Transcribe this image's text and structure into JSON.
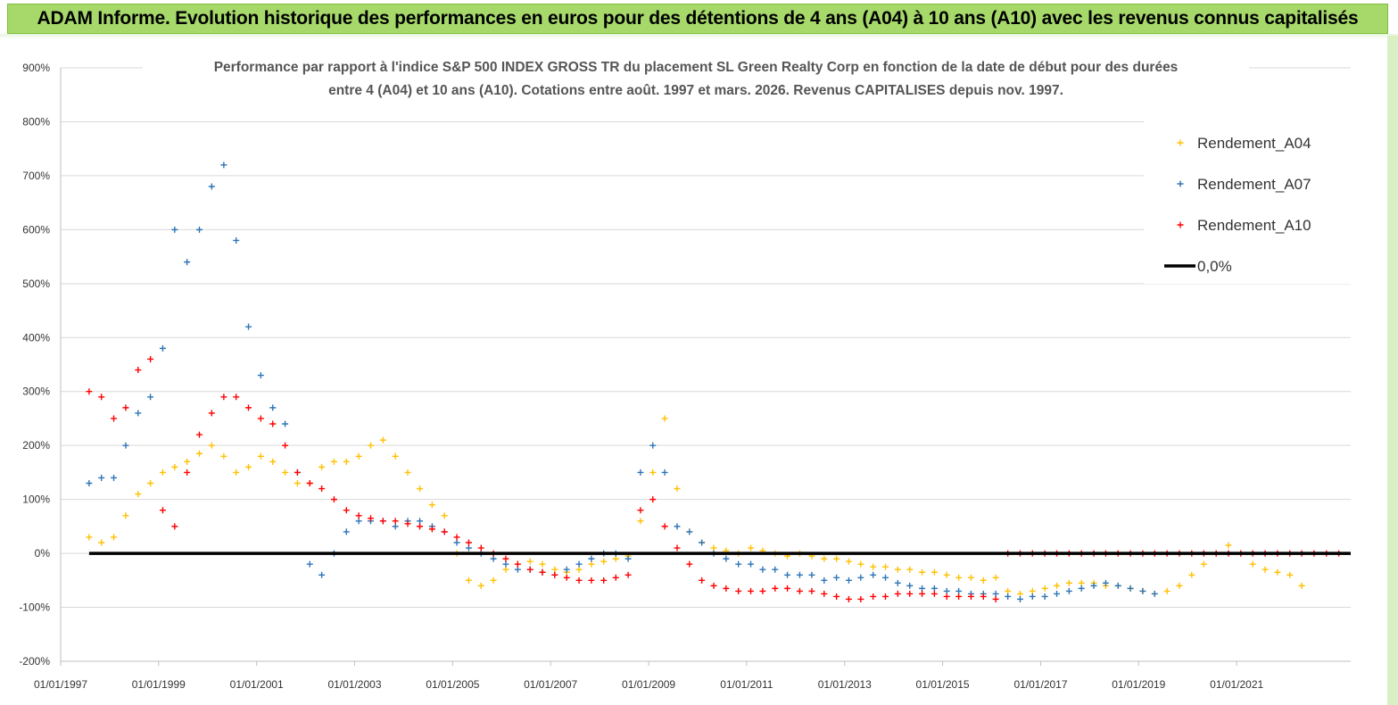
{
  "banner": {
    "text": "ADAM Informe. Evolution historique des performances en euros pour des détentions de 4 ans (A04) à 10 ans (A10) avec les revenus connus capitalisés"
  },
  "colors": {
    "banner_bg": "#a6d96a",
    "A04": "#ffc000",
    "A07": "#2e75b6",
    "A10": "#ff0000",
    "zero_line": "#000000",
    "grid": "#d9d9d9"
  },
  "chart_data": {
    "type": "scatter",
    "title": "Performance par rapport à l'indice S&P 500 INDEX GROSS TR  du placement SL Green Realty Corp en fonction de la date de début pour des durées entre 4 (A04) et 10 ans (A10). Cotations entre août. 1997 et mars. 2026. Revenus CAPITALISES depuis nov. 1997.",
    "title_lines": [
      "Performance par rapport à l'indice S&P 500 INDEX GROSS TR  du placement SL Green Realty Corp en fonction de la date de début pour des durées",
      "entre 4 (A04) et 10 ans (A10). Cotations entre août. 1997 et mars. 2026. Revenus CAPITALISES depuis nov. 1997."
    ],
    "xlabel": "",
    "ylabel": "",
    "x_type": "date",
    "xlim": [
      "1997-01-01",
      "2023-05-01"
    ],
    "ylim": [
      -200,
      900
    ],
    "y_unit": "%",
    "grid": "horizontal",
    "legend_position": "top-right",
    "x_tick_labels": [
      "01/01/1997",
      "01/01/1999",
      "01/01/2001",
      "01/01/2003",
      "01/01/2005",
      "01/01/2007",
      "01/01/2009",
      "01/01/2011",
      "01/01/2013",
      "01/01/2015",
      "01/01/2017",
      "01/01/2019",
      "01/01/2021"
    ],
    "x_tick_dates": [
      "1997-01-01",
      "1999-01-01",
      "2001-01-01",
      "2003-01-01",
      "2005-01-01",
      "2007-01-01",
      "2009-01-01",
      "2011-01-01",
      "2013-01-01",
      "2015-01-01",
      "2017-01-01",
      "2019-01-01",
      "2021-01-01"
    ],
    "y_tick_labels": [
      "900%",
      "800%",
      "700%",
      "600%",
      "500%",
      "400%",
      "300%",
      "200%",
      "100%",
      "0%",
      "-100%",
      "-200%"
    ],
    "y_ticks": [
      900,
      800,
      700,
      600,
      500,
      400,
      300,
      200,
      100,
      0,
      -100,
      -200
    ],
    "series": [
      {
        "name": "Rendement_A04",
        "marker": "+",
        "x": [
          "1997-08-01",
          "1997-11-01",
          "1998-02-01",
          "1998-05-01",
          "1998-08-01",
          "1998-11-01",
          "1999-02-01",
          "1999-05-01",
          "1999-08-01",
          "1999-11-01",
          "2000-02-01",
          "2000-05-01",
          "2000-08-01",
          "2000-11-01",
          "2001-02-01",
          "2001-05-01",
          "2001-08-01",
          "2001-11-01",
          "2002-02-01",
          "2002-05-01",
          "2002-08-01",
          "2002-11-01",
          "2003-02-01",
          "2003-05-01",
          "2003-08-01",
          "2003-11-01",
          "2004-02-01",
          "2004-05-01",
          "2004-08-01",
          "2004-11-01",
          "2005-02-01",
          "2005-05-01",
          "2005-08-01",
          "2005-11-01",
          "2006-02-01",
          "2006-05-01",
          "2006-08-01",
          "2006-11-01",
          "2007-02-01",
          "2007-05-01",
          "2007-08-01",
          "2007-11-01",
          "2008-02-01",
          "2008-05-01",
          "2008-08-01",
          "2008-11-01",
          "2009-02-01",
          "2009-05-01",
          "2009-08-01",
          "2009-11-01",
          "2010-02-01",
          "2010-05-01",
          "2010-08-01",
          "2010-11-01",
          "2011-02-01",
          "2011-05-01",
          "2011-08-01",
          "2011-11-01",
          "2012-02-01",
          "2012-05-01",
          "2012-08-01",
          "2012-11-01",
          "2013-02-01",
          "2013-05-01",
          "2013-08-01",
          "2013-11-01",
          "2014-02-01",
          "2014-05-01",
          "2014-08-01",
          "2014-11-01",
          "2015-02-01",
          "2015-05-01",
          "2015-08-01",
          "2015-11-01",
          "2016-02-01",
          "2016-05-01",
          "2016-08-01",
          "2016-11-01",
          "2017-02-01",
          "2017-05-01",
          "2017-08-01",
          "2017-11-01",
          "2018-02-01",
          "2018-05-01",
          "2018-08-01",
          "2018-11-01",
          "2019-02-01",
          "2019-05-01",
          "2019-08-01",
          "2019-11-01",
          "2020-02-01",
          "2020-05-01",
          "2020-08-01",
          "2020-11-01",
          "2021-02-01",
          "2021-05-01",
          "2021-08-01",
          "2021-11-01",
          "2022-02-01",
          "2022-05-01"
        ],
        "y": [
          30,
          20,
          30,
          70,
          110,
          130,
          150,
          160,
          170,
          185,
          200,
          180,
          150,
          160,
          180,
          170,
          150,
          130,
          130,
          160,
          170,
          170,
          180,
          200,
          210,
          180,
          150,
          120,
          90,
          70,
          0,
          -50,
          -60,
          -50,
          -30,
          -20,
          -15,
          -20,
          -30,
          -35,
          -30,
          -20,
          -15,
          -10,
          -5,
          60,
          150,
          250,
          120,
          40,
          20,
          10,
          5,
          0,
          10,
          5,
          0,
          -5,
          0,
          -5,
          -10,
          -10,
          -15,
          -20,
          -25,
          -25,
          -30,
          -30,
          -35,
          -35,
          -40,
          -45,
          -45,
          -50,
          -45,
          -70,
          -75,
          -70,
          -65,
          -60,
          -55,
          -55,
          -55,
          -60,
          -60,
          -65,
          -70,
          -75,
          -70,
          -60,
          -40,
          -20,
          0,
          15,
          0,
          -20,
          -30,
          -35,
          -40,
          -60
        ]
      },
      {
        "name": "Rendement_A07",
        "marker": "+",
        "x": [
          "1997-08-01",
          "1997-11-01",
          "1998-02-01",
          "1998-05-01",
          "1998-08-01",
          "1998-11-01",
          "1999-02-01",
          "1999-05-01",
          "1999-08-01",
          "1999-11-01",
          "2000-02-01",
          "2000-05-01",
          "2000-08-01",
          "2000-11-01",
          "2001-02-01",
          "2001-05-01",
          "2001-08-01",
          "2001-11-01",
          "2002-02-01",
          "2002-05-01",
          "2002-08-01",
          "2002-11-01",
          "2003-02-01",
          "2003-05-01",
          "2003-08-01",
          "2003-11-01",
          "2004-02-01",
          "2004-05-01",
          "2004-08-01",
          "2004-11-01",
          "2005-02-01",
          "2005-05-01",
          "2005-08-01",
          "2005-11-01",
          "2006-02-01",
          "2006-05-01",
          "2006-08-01",
          "2006-11-01",
          "2007-02-01",
          "2007-05-01",
          "2007-08-01",
          "2007-11-01",
          "2008-02-01",
          "2008-05-01",
          "2008-08-01",
          "2008-11-01",
          "2009-02-01",
          "2009-05-01",
          "2009-08-01",
          "2009-11-01",
          "2010-02-01",
          "2010-05-01",
          "2010-08-01",
          "2010-11-01",
          "2011-02-01",
          "2011-05-01",
          "2011-08-01",
          "2011-11-01",
          "2012-02-01",
          "2012-05-01",
          "2012-08-01",
          "2012-11-01",
          "2013-02-01",
          "2013-05-01",
          "2013-08-01",
          "2013-11-01",
          "2014-02-01",
          "2014-05-01",
          "2014-08-01",
          "2014-11-01",
          "2015-02-01",
          "2015-05-01",
          "2015-08-01",
          "2015-11-01",
          "2016-02-01",
          "2016-05-01",
          "2016-08-01",
          "2016-11-01",
          "2017-02-01",
          "2017-05-01",
          "2017-08-01",
          "2017-11-01",
          "2018-02-01",
          "2018-05-01",
          "2018-08-01",
          "2018-11-01",
          "2019-02-01",
          "2019-05-01"
        ],
        "y": [
          130,
          140,
          140,
          200,
          260,
          290,
          380,
          600,
          540,
          600,
          680,
          720,
          580,
          420,
          330,
          270,
          240,
          150,
          -20,
          -40,
          0,
          40,
          60,
          60,
          60,
          50,
          60,
          60,
          50,
          40,
          20,
          10,
          0,
          -10,
          -20,
          -30,
          -30,
          -35,
          -40,
          -30,
          -20,
          -10,
          0,
          0,
          -10,
          150,
          200,
          150,
          50,
          40,
          20,
          0,
          -10,
          -20,
          -20,
          -30,
          -30,
          -40,
          -40,
          -40,
          -50,
          -45,
          -50,
          -45,
          -40,
          -45,
          -55,
          -60,
          -65,
          -65,
          -70,
          -70,
          -75,
          -75,
          -75,
          -80,
          -85,
          -80,
          -80,
          -75,
          -70,
          -65,
          -60,
          -55,
          -60,
          -65,
          -70,
          -75
        ]
      },
      {
        "name": "Rendement_A10",
        "marker": "+",
        "x": [
          "1997-08-01",
          "1997-11-01",
          "1998-02-01",
          "1998-05-01",
          "1998-08-01",
          "1998-11-01",
          "1999-02-01",
          "1999-05-01",
          "1999-08-01",
          "1999-11-01",
          "2000-02-01",
          "2000-05-01",
          "2000-08-01",
          "2000-11-01",
          "2001-02-01",
          "2001-05-01",
          "2001-08-01",
          "2001-11-01",
          "2002-02-01",
          "2002-05-01",
          "2002-08-01",
          "2002-11-01",
          "2003-02-01",
          "2003-05-01",
          "2003-08-01",
          "2003-11-01",
          "2004-02-01",
          "2004-05-01",
          "2004-08-01",
          "2004-11-01",
          "2005-02-01",
          "2005-05-01",
          "2005-08-01",
          "2005-11-01",
          "2006-02-01",
          "2006-05-01",
          "2006-08-01",
          "2006-11-01",
          "2007-02-01",
          "2007-05-01",
          "2007-08-01",
          "2007-11-01",
          "2008-02-01",
          "2008-05-01",
          "2008-08-01",
          "2008-11-01",
          "2009-02-01",
          "2009-05-01",
          "2009-08-01",
          "2009-11-01",
          "2010-02-01",
          "2010-05-01",
          "2010-08-01",
          "2010-11-01",
          "2011-02-01",
          "2011-05-01",
          "2011-08-01",
          "2011-11-01",
          "2012-02-01",
          "2012-05-01",
          "2012-08-01",
          "2012-11-01",
          "2013-02-01",
          "2013-05-01",
          "2013-08-01",
          "2013-11-01",
          "2014-02-01",
          "2014-05-01",
          "2014-08-01",
          "2014-11-01",
          "2015-02-01",
          "2015-05-01",
          "2015-08-01",
          "2015-11-01",
          "2016-02-01",
          "2016-05-01",
          "2016-08-01",
          "2016-11-01",
          "2017-02-01",
          "2017-05-01",
          "2017-08-01",
          "2017-11-01",
          "2018-02-01",
          "2018-05-01",
          "2018-08-01",
          "2018-11-01",
          "2019-02-01",
          "2019-05-01",
          "2019-08-01",
          "2019-11-01",
          "2020-02-01",
          "2020-05-01",
          "2020-08-01",
          "2020-11-01",
          "2021-02-01",
          "2021-05-01",
          "2021-08-01",
          "2021-11-01",
          "2022-02-01",
          "2022-05-01",
          "2022-08-01",
          "2022-11-01",
          "2023-02-01"
        ],
        "y": [
          300,
          290,
          250,
          270,
          340,
          360,
          80,
          50,
          150,
          220,
          260,
          290,
          290,
          270,
          250,
          240,
          200,
          150,
          130,
          120,
          100,
          80,
          70,
          65,
          60,
          60,
          55,
          50,
          45,
          40,
          30,
          20,
          10,
          0,
          -10,
          -20,
          -30,
          -35,
          -40,
          -45,
          -50,
          -50,
          -50,
          -45,
          -40,
          80,
          100,
          50,
          10,
          -20,
          -50,
          -60,
          -65,
          -70,
          -70,
          -70,
          -65,
          -65,
          -70,
          -70,
          -75,
          -80,
          -85,
          -85,
          -80,
          -80,
          -75,
          -75,
          -75,
          -75,
          -80,
          -80,
          -80,
          -80,
          -85,
          0,
          0,
          0,
          0,
          0,
          0,
          0,
          0,
          0,
          0,
          0,
          0,
          0,
          0,
          0,
          0,
          0,
          0,
          0,
          0,
          0,
          0,
          0,
          0,
          0,
          0,
          0,
          0
        ]
      },
      {
        "name": "0,0%",
        "type": "line",
        "x": [
          "1997-08-01",
          "2023-05-01"
        ],
        "y": [
          0,
          0
        ]
      }
    ]
  }
}
